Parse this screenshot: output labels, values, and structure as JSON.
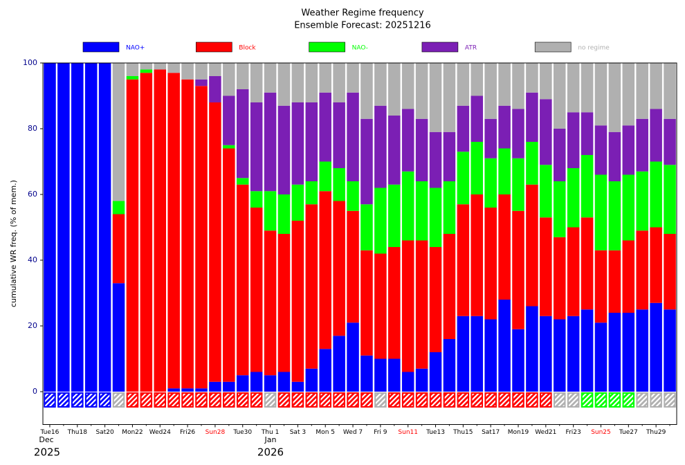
{
  "chart_data": {
    "type": "stacked_bar",
    "title": "Weather Regime frequency",
    "subtitle": "Ensemble Forecast: 20251216",
    "ylabel": "cumulative WR freq. (% of mem.)",
    "ylim": [
      -10,
      100
    ],
    "yticks": [
      0,
      20,
      40,
      60,
      80,
      100
    ],
    "categories": [
      "Tue16",
      null,
      "Thu18",
      null,
      "Sat20",
      null,
      "Mon22",
      null,
      "Wed24",
      null,
      "Fri26",
      null,
      "Sun28",
      null,
      "Tue30",
      null,
      "Thu 1",
      null,
      "Sat 3",
      null,
      "Mon 5",
      null,
      "Wed 7",
      null,
      "Fri 9",
      null,
      "Sun11",
      null,
      "Tue13",
      null,
      "Thu15",
      null,
      "Sat17",
      null,
      "Mon19",
      null,
      "Wed21",
      null,
      "Fri23",
      null,
      "Sun25",
      null,
      "Tue27",
      null,
      "Thu29",
      null
    ],
    "xtick_colors": [
      "#000",
      null,
      "#000",
      null,
      "#000",
      null,
      "#000",
      null,
      "#000",
      null,
      "#000",
      null,
      "#ff0000",
      null,
      "#000",
      null,
      "#000",
      null,
      "#000",
      null,
      "#000",
      null,
      "#000",
      null,
      "#000",
      null,
      "#ff0000",
      null,
      "#000",
      null,
      "#000",
      null,
      "#000",
      null,
      "#000",
      null,
      "#000",
      null,
      "#000",
      null,
      "#ff0000",
      null,
      "#000",
      null,
      "#000",
      null
    ],
    "annotations": [
      "Dec",
      "2025",
      "Jan",
      "2026"
    ],
    "series": [
      {
        "name": "NAO+",
        "color": "#0000ff",
        "values": [
          100,
          100,
          100,
          100,
          100,
          33,
          0,
          0,
          0,
          1,
          1,
          1,
          3,
          3,
          5,
          6,
          5,
          6,
          3,
          7,
          13,
          17,
          21,
          11,
          10,
          10,
          6,
          7,
          12,
          16,
          23,
          23,
          22,
          28,
          19,
          26,
          23,
          22,
          23,
          25,
          21,
          24,
          24,
          25,
          27,
          25
        ]
      },
      {
        "name": "Block",
        "color": "#ff0000",
        "values": [
          0,
          0,
          0,
          0,
          0,
          21,
          95,
          97,
          98,
          96,
          94,
          92,
          85,
          71,
          58,
          50,
          44,
          42,
          49,
          50,
          48,
          41,
          34,
          32,
          32,
          34,
          40,
          39,
          32,
          32,
          34,
          37,
          34,
          32,
          36,
          37,
          30,
          25,
          27,
          28,
          22,
          19,
          22,
          24,
          23,
          23
        ]
      },
      {
        "name": "NAO-",
        "color": "#00ff00",
        "values": [
          0,
          0,
          0,
          0,
          0,
          4,
          1,
          1,
          0,
          0,
          0,
          0,
          0,
          1,
          2,
          5,
          12,
          12,
          11,
          7,
          9,
          10,
          9,
          14,
          20,
          19,
          21,
          18,
          18,
          16,
          16,
          16,
          15,
          14,
          16,
          13,
          16,
          17,
          18,
          19,
          23,
          21,
          20,
          18,
          20,
          21
        ]
      },
      {
        "name": "ATR",
        "color": "#7b1fb4",
        "values": [
          0,
          0,
          0,
          0,
          0,
          0,
          0,
          0,
          0,
          0,
          0,
          2,
          8,
          15,
          27,
          27,
          30,
          27,
          25,
          24,
          21,
          20,
          27,
          26,
          25,
          21,
          19,
          19,
          17,
          15,
          14,
          14,
          12,
          13,
          15,
          15,
          20,
          16,
          17,
          13,
          15,
          15,
          15,
          16,
          16,
          14
        ]
      },
      {
        "name": "no regime",
        "color": "#b0b0b0",
        "values": [
          0,
          0,
          0,
          0,
          0,
          42,
          4,
          2,
          2,
          3,
          5,
          5,
          4,
          10,
          8,
          12,
          9,
          13,
          12,
          12,
          9,
          12,
          9,
          17,
          13,
          16,
          14,
          17,
          21,
          21,
          13,
          10,
          17,
          13,
          14,
          9,
          11,
          20,
          15,
          15,
          19,
          21,
          19,
          17,
          14,
          17
        ]
      }
    ],
    "strip_colors": [
      "#0000ff",
      "#0000ff",
      "#0000ff",
      "#0000ff",
      "#0000ff",
      "#b0b0b0",
      "#ff0000",
      "#ff0000",
      "#ff0000",
      "#ff0000",
      "#ff0000",
      "#ff0000",
      "#ff0000",
      "#ff0000",
      "#ff0000",
      "#ff0000",
      "#b0b0b0",
      "#ff0000",
      "#ff0000",
      "#ff0000",
      "#ff0000",
      "#ff0000",
      "#ff0000",
      "#ff0000",
      "#b0b0b0",
      "#ff0000",
      "#ff0000",
      "#ff0000",
      "#ff0000",
      "#ff0000",
      "#ff0000",
      "#ff0000",
      "#ff0000",
      "#ff0000",
      "#ff0000",
      "#ff0000",
      "#ff0000",
      "#b0b0b0",
      "#b0b0b0",
      "#00ff00",
      "#00ff00",
      "#00ff00",
      "#00ff00",
      "#b0b0b0",
      "#b0b0b0",
      "#b0b0b0"
    ]
  }
}
